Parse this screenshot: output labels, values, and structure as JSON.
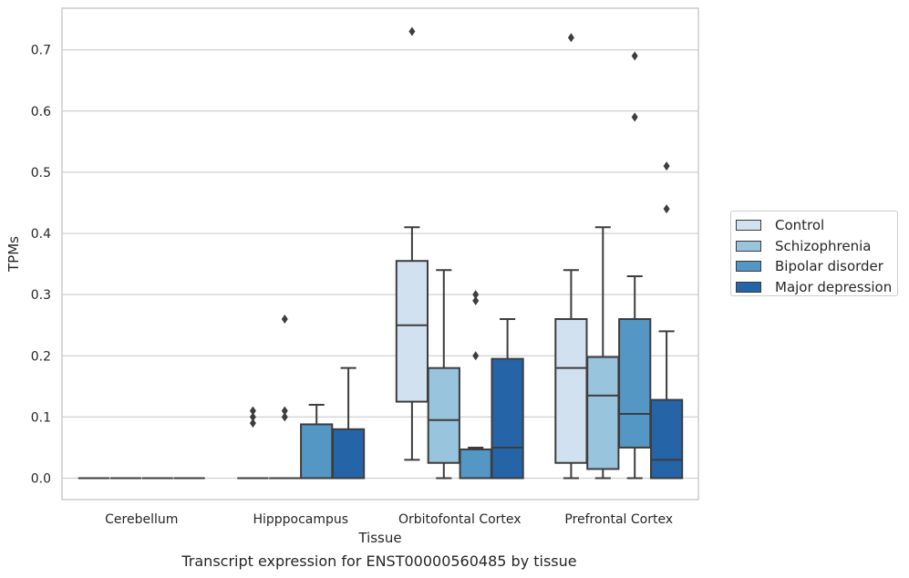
{
  "caption": "Transcript expression for ENST00000560485 by tissue",
  "colors": {
    "series": [
      "#d1e1f0",
      "#98c4dd",
      "#5497c4",
      "#2564a7"
    ],
    "box_edge": "#3d3d3d",
    "grid": "#d0d0d0",
    "frame": "#cccccc"
  },
  "chart_data": {
    "type": "box",
    "xlabel": "Tissue",
    "ylabel": "TPMs",
    "ylim": [
      -0.035,
      0.768
    ],
    "yticks": [
      "0.0",
      "0.1",
      "0.2",
      "0.3",
      "0.4",
      "0.5",
      "0.6",
      "0.7"
    ],
    "ytick_values": [
      0,
      0.1,
      0.2,
      0.3,
      0.4,
      0.5,
      0.6,
      0.7
    ],
    "grid": true,
    "legend_position": "outside-right",
    "categories": [
      "Cerebellum",
      "Hipppocampus",
      "Orbitofontal Cortex",
      "Prefrontal Cortex"
    ],
    "series": [
      {
        "name": "Control",
        "boxes": [
          {
            "q1": 0,
            "median": 0,
            "q3": 0,
            "whislo": 0,
            "whishi": 0,
            "fliers": []
          },
          {
            "q1": 0,
            "median": 0,
            "q3": 0,
            "whislo": 0,
            "whishi": 0,
            "fliers": [
              0.09,
              0.1,
              0.11
            ]
          },
          {
            "q1": 0.125,
            "median": 0.25,
            "q3": 0.355,
            "whislo": 0.03,
            "whishi": 0.41,
            "fliers": [
              0.73
            ]
          },
          {
            "q1": 0.025,
            "median": 0.18,
            "q3": 0.26,
            "whislo": 0,
            "whishi": 0.34,
            "fliers": [
              0.72
            ]
          }
        ]
      },
      {
        "name": "Schizophrenia",
        "boxes": [
          {
            "q1": 0,
            "median": 0,
            "q3": 0,
            "whislo": 0,
            "whishi": 0,
            "fliers": []
          },
          {
            "q1": 0,
            "median": 0,
            "q3": 0,
            "whislo": 0,
            "whishi": 0,
            "fliers": [
              0.1,
              0.11,
              0.26
            ]
          },
          {
            "q1": 0.025,
            "median": 0.095,
            "q3": 0.18,
            "whislo": 0,
            "whishi": 0.34,
            "fliers": []
          },
          {
            "q1": 0.015,
            "median": 0.135,
            "q3": 0.198,
            "whislo": 0,
            "whishi": 0.41,
            "fliers": []
          }
        ]
      },
      {
        "name": "Bipolar disorder",
        "boxes": [
          {
            "q1": 0,
            "median": 0,
            "q3": 0,
            "whislo": 0,
            "whishi": 0,
            "fliers": []
          },
          {
            "q1": 0,
            "median": 0,
            "q3": 0.088,
            "whislo": 0,
            "whishi": 0.12,
            "fliers": []
          },
          {
            "q1": 0,
            "median": 0,
            "q3": 0.047,
            "whislo": 0,
            "whishi": 0.05,
            "fliers": [
              0.2,
              0.29,
              0.3
            ]
          },
          {
            "q1": 0.05,
            "median": 0.105,
            "q3": 0.26,
            "whislo": 0,
            "whishi": 0.33,
            "fliers": [
              0.59,
              0.69
            ]
          }
        ]
      },
      {
        "name": "Major depression",
        "boxes": [
          {
            "q1": 0,
            "median": 0,
            "q3": 0,
            "whislo": 0,
            "whishi": 0,
            "fliers": []
          },
          {
            "q1": 0,
            "median": 0,
            "q3": 0.08,
            "whislo": 0,
            "whishi": 0.18,
            "fliers": []
          },
          {
            "q1": 0,
            "median": 0.05,
            "q3": 0.195,
            "whislo": 0,
            "whishi": 0.26,
            "fliers": []
          },
          {
            "q1": 0,
            "median": 0.03,
            "q3": 0.128,
            "whislo": 0,
            "whishi": 0.24,
            "fliers": [
              0.44,
              0.51
            ]
          }
        ]
      }
    ]
  }
}
